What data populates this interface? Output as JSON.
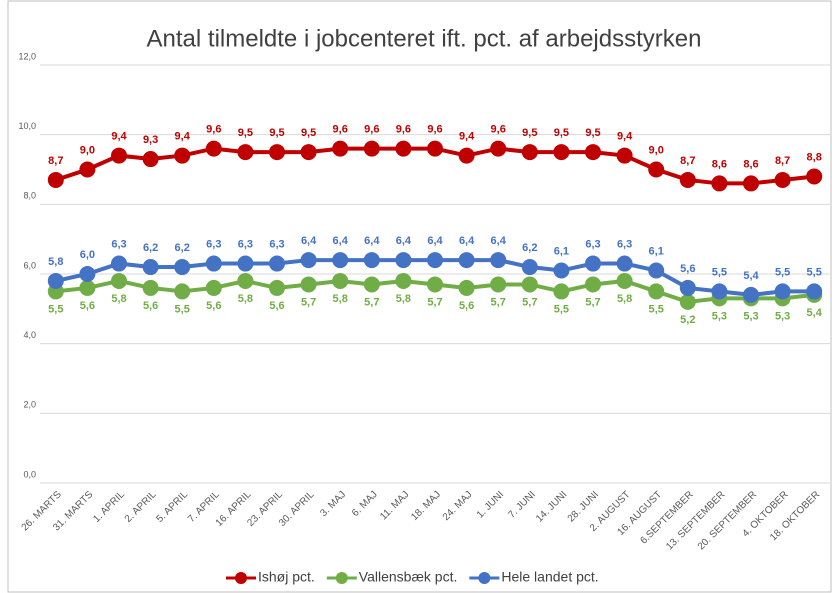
{
  "chart_data": {
    "type": "line",
    "title": "Antal tilmeldte i jobcenteret ift. pct. af arbejdsstyrken",
    "categories": [
      "26. MARTS",
      "31. MARTS",
      "1. APRIL",
      "2. APRIL",
      "5. APRIL",
      "7. APRIL",
      "16. APRIL",
      "23. APRIL",
      "30. APRIL",
      "3. MAJ",
      "6. MAJ",
      "11. MAJ",
      "18. MAJ",
      "24. MAJ",
      "1. JUNI",
      "7. JUNI",
      "14. JUNI",
      "28. JUNI",
      "2. AUGUST",
      "16. AUGUST",
      "6.SEPTEMBER",
      "13. SEPTEMBER",
      "20. SEPTEMBER",
      "4. OKTOBER",
      "18. OKTOBER"
    ],
    "series": [
      {
        "name": "Ishøj pct.",
        "color": "#c00000",
        "values": [
          8.7,
          9.0,
          9.4,
          9.3,
          9.4,
          9.6,
          9.5,
          9.5,
          9.5,
          9.6,
          9.6,
          9.6,
          9.6,
          9.4,
          9.6,
          9.5,
          9.5,
          9.5,
          9.4,
          9.0,
          8.7,
          8.6,
          8.6,
          8.7,
          8.8
        ],
        "value_labels": [
          "8,7",
          "9,0",
          "9,4",
          "9,3",
          "9,4",
          "9,6",
          "9,5",
          "9,5",
          "9,5",
          "9,6",
          "9,6",
          "9,6",
          "9,6",
          "9,4",
          "9,6",
          "9,5",
          "9,5",
          "9,5",
          "9,4",
          "9,0",
          "8,7",
          "8,6",
          "8,6",
          "8,7",
          "8,8"
        ]
      },
      {
        "name": "Vallensbæk pct.",
        "color": "#70ad47",
        "values": [
          5.5,
          5.6,
          5.8,
          5.6,
          5.5,
          5.6,
          5.8,
          5.6,
          5.7,
          5.8,
          5.7,
          5.8,
          5.7,
          5.6,
          5.7,
          5.7,
          5.5,
          5.7,
          5.8,
          5.5,
          5.2,
          5.3,
          5.3,
          5.3,
          5.4
        ],
        "value_labels": [
          "5,5",
          "5,6",
          "5,8",
          "5,6",
          "5,5",
          "5,6",
          "5,8",
          "5,6",
          "5,7",
          "5,8",
          "5,7",
          "5,8",
          "5,7",
          "5,6",
          "5,7",
          "5,7",
          "5,5",
          "5,7",
          "5,8",
          "5,5",
          "5,2",
          "5,3",
          "5,3",
          "5,3",
          "5,4"
        ]
      },
      {
        "name": "Hele landet pct.",
        "color": "#4472c4",
        "values": [
          5.8,
          6.0,
          6.3,
          6.2,
          6.2,
          6.3,
          6.3,
          6.3,
          6.4,
          6.4,
          6.4,
          6.4,
          6.4,
          6.4,
          6.4,
          6.2,
          6.1,
          6.3,
          6.3,
          6.1,
          5.6,
          5.5,
          5.4,
          5.5,
          5.5
        ],
        "value_labels": [
          "5,8",
          "6,0",
          "6,3",
          "6,2",
          "6,2",
          "6,3",
          "6,3",
          "6,3",
          "6,4",
          "6,4",
          "6,4",
          "6,4",
          "6,4",
          "6,4",
          "6,4",
          "6,2",
          "6,1",
          "6,3",
          "6,3",
          "6,1",
          "5,6",
          "5,5",
          "5,4",
          "5,5",
          "5,5"
        ]
      }
    ],
    "ylim": [
      0,
      12
    ],
    "yticks": [
      {
        "value": 0,
        "label": "0,0"
      },
      {
        "value": 2,
        "label": "2,0"
      },
      {
        "value": 4,
        "label": "4,0"
      },
      {
        "value": 6,
        "label": "6,0"
      },
      {
        "value": 8,
        "label": "8,0"
      },
      {
        "value": 10,
        "label": "10,0"
      },
      {
        "value": 12,
        "label": "12,0"
      }
    ],
    "grid": true,
    "legend": "bottom"
  }
}
